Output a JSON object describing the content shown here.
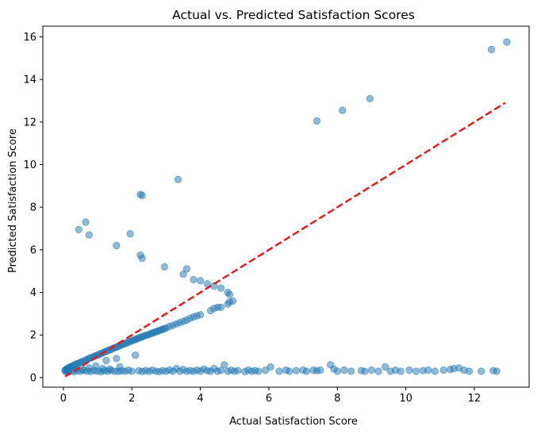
{
  "chart_data": {
    "type": "scatter",
    "title": "Actual vs. Predicted Satisfaction Scores",
    "xlabel": "Actual Satisfaction Score",
    "ylabel": "Predicted Satisfaction Score",
    "xlim": [
      -0.6,
      13.6
    ],
    "ylim": [
      -0.45,
      16.5
    ],
    "xticks": [
      0,
      2,
      4,
      6,
      8,
      10,
      12
    ],
    "yticks": [
      0,
      2,
      4,
      6,
      8,
      10,
      12,
      14,
      16
    ],
    "grid": false,
    "legend": "none",
    "point_color": "#1f77b4",
    "line_color": "#e8161a",
    "reference_line": {
      "style": "dashed",
      "x": [
        0.05,
        12.9
      ],
      "y": [
        0.05,
        12.9
      ]
    },
    "series": [
      {
        "points": [
          [
            0.05,
            0.35
          ],
          [
            0.08,
            0.38
          ],
          [
            0.1,
            0.4
          ],
          [
            0.12,
            0.43
          ],
          [
            0.15,
            0.45
          ],
          [
            0.18,
            0.48
          ],
          [
            0.2,
            0.5
          ],
          [
            0.25,
            0.54
          ],
          [
            0.3,
            0.58
          ],
          [
            0.35,
            0.62
          ],
          [
            0.4,
            0.65
          ],
          [
            0.45,
            0.68
          ],
          [
            0.5,
            0.72
          ],
          [
            0.55,
            0.75
          ],
          [
            0.6,
            0.78
          ],
          [
            0.65,
            0.82
          ],
          [
            0.7,
            0.86
          ],
          [
            0.75,
            0.9
          ],
          [
            0.8,
            0.93
          ],
          [
            0.85,
            0.96
          ],
          [
            0.9,
            1.0
          ],
          [
            0.95,
            1.03
          ],
          [
            1.0,
            1.06
          ],
          [
            1.05,
            1.1
          ],
          [
            1.1,
            1.13
          ],
          [
            1.15,
            1.16
          ],
          [
            1.2,
            1.2
          ],
          [
            1.25,
            1.23
          ],
          [
            1.3,
            1.27
          ],
          [
            1.35,
            1.3
          ],
          [
            1.4,
            1.33
          ],
          [
            1.45,
            1.37
          ],
          [
            1.5,
            1.4
          ],
          [
            1.55,
            1.43
          ],
          [
            1.6,
            1.47
          ],
          [
            1.65,
            1.5
          ],
          [
            1.7,
            1.53
          ],
          [
            1.75,
            1.57
          ],
          [
            1.8,
            1.6
          ],
          [
            1.85,
            1.63
          ],
          [
            1.9,
            1.67
          ],
          [
            1.95,
            1.7
          ],
          [
            2.0,
            1.73
          ],
          [
            2.05,
            1.76
          ],
          [
            2.1,
            1.79
          ],
          [
            2.15,
            1.82
          ],
          [
            2.2,
            1.86
          ],
          [
            2.25,
            1.89
          ],
          [
            2.3,
            1.92
          ],
          [
            2.35,
            1.95
          ],
          [
            2.4,
            1.98
          ],
          [
            2.45,
            2.0
          ],
          [
            2.5,
            2.03
          ],
          [
            2.55,
            2.06
          ],
          [
            2.6,
            2.09
          ],
          [
            2.65,
            2.12
          ],
          [
            2.7,
            2.15
          ],
          [
            2.75,
            2.18
          ],
          [
            2.8,
            2.21
          ],
          [
            2.85,
            2.24
          ],
          [
            2.9,
            2.27
          ],
          [
            2.95,
            2.3
          ],
          [
            3.0,
            2.33
          ],
          [
            3.1,
            2.4
          ],
          [
            3.2,
            2.46
          ],
          [
            3.3,
            2.52
          ],
          [
            3.4,
            2.58
          ],
          [
            3.5,
            2.64
          ],
          [
            3.6,
            2.7
          ],
          [
            3.7,
            2.78
          ],
          [
            3.8,
            2.85
          ],
          [
            3.9,
            2.9
          ],
          [
            4.0,
            2.95
          ],
          [
            4.3,
            3.15
          ],
          [
            4.4,
            3.25
          ],
          [
            4.5,
            3.3
          ],
          [
            4.6,
            3.3
          ],
          [
            4.8,
            3.45
          ],
          [
            4.85,
            3.55
          ],
          [
            4.95,
            3.6
          ],
          [
            4.0,
            4.55
          ],
          [
            4.2,
            4.4
          ],
          [
            4.4,
            4.3
          ],
          [
            4.6,
            4.2
          ],
          [
            4.8,
            4.0
          ],
          [
            4.85,
            3.9
          ],
          [
            3.8,
            4.6
          ],
          [
            3.5,
            4.85
          ],
          [
            3.6,
            5.1
          ],
          [
            2.95,
            5.2
          ],
          [
            2.25,
            5.75
          ],
          [
            2.3,
            5.6
          ],
          [
            1.55,
            6.2
          ],
          [
            1.95,
            6.75
          ],
          [
            0.45,
            6.95
          ],
          [
            0.65,
            7.3
          ],
          [
            0.75,
            6.7
          ],
          [
            2.25,
            8.6
          ],
          [
            2.3,
            8.55
          ],
          [
            3.35,
            9.3
          ],
          [
            7.4,
            12.05
          ],
          [
            8.15,
            12.55
          ],
          [
            8.95,
            13.1
          ],
          [
            12.5,
            15.4
          ],
          [
            12.95,
            15.75
          ],
          [
            0.05,
            0.3
          ],
          [
            0.1,
            0.28
          ],
          [
            0.15,
            0.32
          ],
          [
            0.2,
            0.3
          ],
          [
            0.3,
            0.28
          ],
          [
            0.4,
            0.32
          ],
          [
            0.5,
            0.3
          ],
          [
            0.6,
            0.34
          ],
          [
            0.7,
            0.3
          ],
          [
            0.8,
            0.29
          ],
          [
            0.9,
            0.33
          ],
          [
            1.0,
            0.3
          ],
          [
            1.1,
            0.28
          ],
          [
            1.2,
            0.32
          ],
          [
            1.3,
            0.3
          ],
          [
            1.4,
            0.34
          ],
          [
            1.5,
            0.3
          ],
          [
            1.6,
            0.29
          ],
          [
            1.7,
            0.32
          ],
          [
            1.8,
            0.3
          ],
          [
            1.9,
            0.35
          ],
          [
            2.0,
            0.3
          ],
          [
            2.1,
            1.05
          ],
          [
            2.2,
            0.32
          ],
          [
            2.3,
            0.29
          ],
          [
            2.4,
            0.33
          ],
          [
            2.5,
            0.3
          ],
          [
            2.6,
            0.35
          ],
          [
            2.7,
            0.3
          ],
          [
            2.8,
            0.28
          ],
          [
            2.9,
            0.33
          ],
          [
            3.0,
            0.3
          ],
          [
            3.1,
            0.36
          ],
          [
            3.2,
            0.3
          ],
          [
            3.3,
            0.42
          ],
          [
            3.4,
            0.3
          ],
          [
            3.5,
            0.38
          ],
          [
            3.6,
            0.3
          ],
          [
            3.7,
            0.33
          ],
          [
            3.8,
            0.3
          ],
          [
            3.9,
            0.35
          ],
          [
            4.0,
            0.3
          ],
          [
            4.1,
            0.4
          ],
          [
            4.2,
            0.32
          ],
          [
            4.3,
            0.3
          ],
          [
            4.4,
            0.42
          ],
          [
            4.5,
            0.3
          ],
          [
            4.6,
            0.34
          ],
          [
            4.7,
            0.6
          ],
          [
            4.8,
            0.3
          ],
          [
            4.9,
            0.35
          ],
          [
            5.0,
            0.3
          ],
          [
            5.1,
            0.33
          ],
          [
            5.3,
            0.28
          ],
          [
            5.4,
            0.35
          ],
          [
            5.5,
            0.3
          ],
          [
            5.6,
            0.33
          ],
          [
            5.7,
            0.3
          ],
          [
            5.9,
            0.35
          ],
          [
            6.05,
            0.5
          ],
          [
            6.3,
            0.3
          ],
          [
            6.5,
            0.35
          ],
          [
            6.6,
            0.3
          ],
          [
            6.8,
            0.33
          ],
          [
            7.0,
            0.35
          ],
          [
            7.1,
            0.3
          ],
          [
            7.3,
            0.35
          ],
          [
            7.4,
            0.32
          ],
          [
            7.5,
            0.35
          ],
          [
            7.8,
            0.6
          ],
          [
            7.9,
            0.4
          ],
          [
            8.0,
            0.3
          ],
          [
            8.2,
            0.35
          ],
          [
            8.4,
            0.3
          ],
          [
            8.7,
            0.33
          ],
          [
            8.8,
            0.3
          ],
          [
            9.0,
            0.35
          ],
          [
            9.2,
            0.3
          ],
          [
            9.4,
            0.5
          ],
          [
            9.55,
            0.3
          ],
          [
            9.7,
            0.35
          ],
          [
            9.85,
            0.3
          ],
          [
            10.1,
            0.35
          ],
          [
            10.3,
            0.3
          ],
          [
            10.5,
            0.33
          ],
          [
            10.65,
            0.35
          ],
          [
            10.85,
            0.3
          ],
          [
            11.1,
            0.35
          ],
          [
            11.3,
            0.38
          ],
          [
            11.4,
            0.42
          ],
          [
            11.55,
            0.45
          ],
          [
            11.7,
            0.35
          ],
          [
            11.85,
            0.3
          ],
          [
            12.2,
            0.3
          ],
          [
            12.55,
            0.33
          ],
          [
            12.65,
            0.3
          ],
          [
            0.35,
            0.4
          ],
          [
            0.55,
            0.38
          ],
          [
            0.75,
            0.45
          ],
          [
            1.15,
            0.42
          ],
          [
            1.35,
            0.4
          ],
          [
            1.65,
            0.5
          ],
          [
            1.55,
            0.9
          ],
          [
            1.25,
            0.8
          ],
          [
            0.95,
            0.55
          ]
        ]
      }
    ]
  }
}
